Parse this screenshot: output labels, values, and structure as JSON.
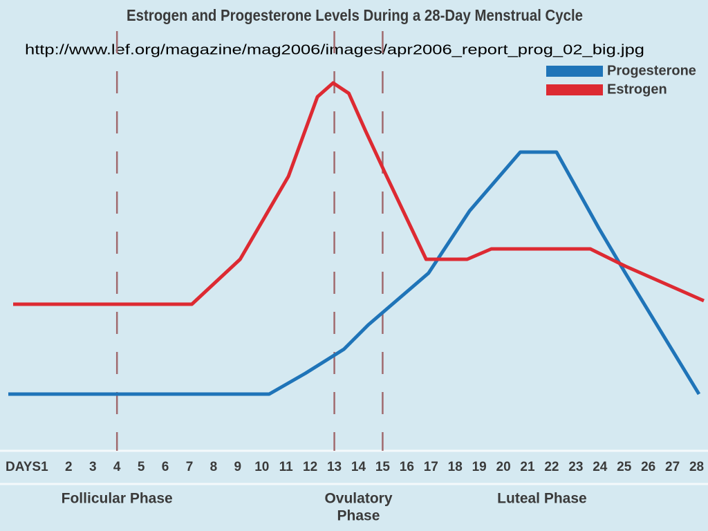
{
  "page": {
    "url_text": "http://www.lef.org/magazine/mag2006/images/apr2006_report_prog_02_big.jpg"
  },
  "chart_data": {
    "type": "line",
    "title": "Estrogen and Progesterone Levels During a 28-Day Menstrual Cycle",
    "x_label": "DAYS",
    "xlim": [
      -0.5,
      28.3
    ],
    "xticks": [
      1,
      2,
      3,
      4,
      5,
      6,
      7,
      8,
      9,
      10,
      11,
      12,
      13,
      14,
      15,
      16,
      17,
      18,
      19,
      20,
      21,
      22,
      23,
      24,
      25,
      26,
      27,
      28
    ],
    "ylim": [
      0,
      110
    ],
    "vlines": [
      4,
      13,
      15
    ],
    "vline_color": "#a06a6e",
    "phases": [
      {
        "lines": [
          "Follicular Phase"
        ],
        "x": 4
      },
      {
        "lines": [
          "Ovulatory",
          "Phase"
        ],
        "x": 14
      },
      {
        "lines": [
          "Luteal Phase"
        ],
        "x": 21.6
      }
    ],
    "series": [
      {
        "name": "Progesterone",
        "color": "#1f74b8",
        "x": [
          -0.5,
          10.3,
          11.8,
          13.4,
          14.4,
          16.9,
          18.6,
          20.7,
          22.2,
          23.95,
          25.05,
          28.1
        ],
        "values": [
          14,
          14,
          20,
          27,
          34,
          49,
          67,
          84,
          84,
          62,
          49,
          14
        ]
      },
      {
        "name": "Estrogen",
        "color": "#dd2a32",
        "x": [
          -0.3,
          7.1,
          9.1,
          11.1,
          12.3,
          12.95,
          13.6,
          14.3,
          15.1,
          16.8,
          18.5,
          19.5,
          23.6,
          25.05,
          28.3
        ],
        "values": [
          40,
          40,
          53,
          77,
          100,
          104,
          101,
          90,
          78,
          53,
          53,
          56,
          56,
          51,
          41
        ]
      }
    ]
  }
}
